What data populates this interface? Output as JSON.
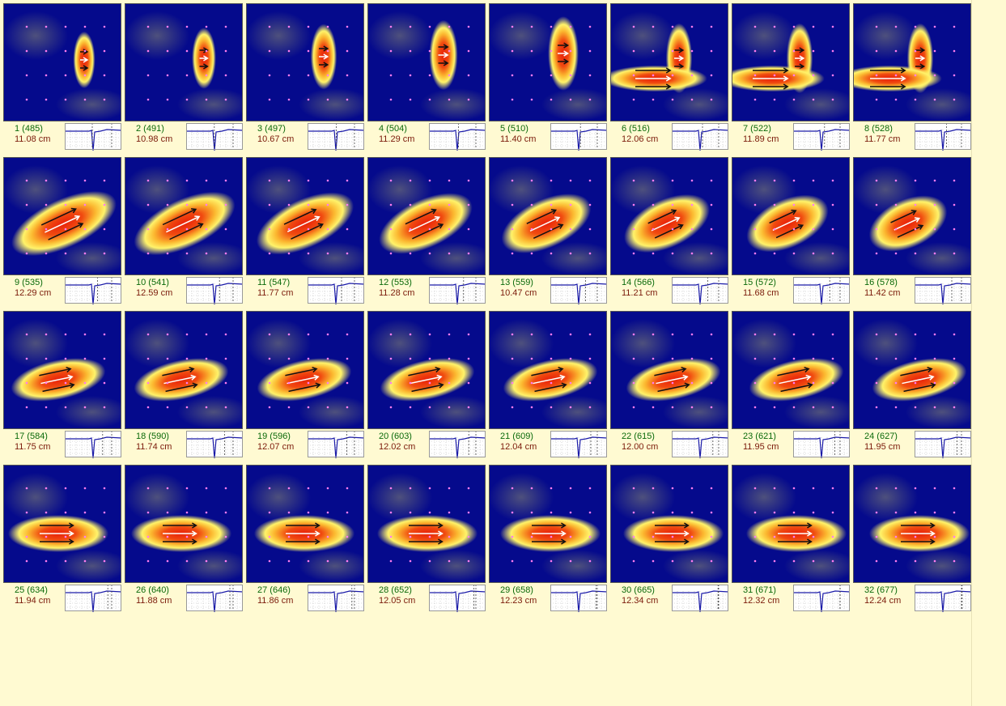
{
  "frames": [
    {
      "label": "1 (485)",
      "distance": "11.08 cm"
    },
    {
      "label": "2 (491)",
      "distance": "10.98 cm"
    },
    {
      "label": "3 (497)",
      "distance": "10.67 cm"
    },
    {
      "label": "4 (504)",
      "distance": "11.29 cm"
    },
    {
      "label": "5 (510)",
      "distance": "11.40 cm"
    },
    {
      "label": "6 (516)",
      "distance": "12.06 cm"
    },
    {
      "label": "7 (522)",
      "distance": "11.89 cm"
    },
    {
      "label": "8 (528)",
      "distance": "11.77 cm"
    },
    {
      "label": "9 (535)",
      "distance": "12.29 cm"
    },
    {
      "label": "10 (541)",
      "distance": "12.59 cm"
    },
    {
      "label": "11 (547)",
      "distance": "11.77 cm"
    },
    {
      "label": "12 (553)",
      "distance": "11.28 cm"
    },
    {
      "label": "13 (559)",
      "distance": "10.47 cm"
    },
    {
      "label": "14 (566)",
      "distance": "11.21 cm"
    },
    {
      "label": "15 (572)",
      "distance": "11.68 cm"
    },
    {
      "label": "16 (578)",
      "distance": "11.42 cm"
    },
    {
      "label": "17 (584)",
      "distance": "11.75 cm"
    },
    {
      "label": "18 (590)",
      "distance": "11.74 cm"
    },
    {
      "label": "19 (596)",
      "distance": "12.07 cm"
    },
    {
      "label": "20 (603)",
      "distance": "12.02 cm"
    },
    {
      "label": "21 (609)",
      "distance": "12.04 cm"
    },
    {
      "label": "22 (615)",
      "distance": "12.00 cm"
    },
    {
      "label": "23 (621)",
      "distance": "11.95 cm"
    },
    {
      "label": "24 (627)",
      "distance": "11.95 cm"
    },
    {
      "label": "25 (634)",
      "distance": "11.94 cm"
    },
    {
      "label": "26 (640)",
      "distance": "11.88 cm"
    },
    {
      "label": "27 (646)",
      "distance": "11.86 cm"
    },
    {
      "label": "28 (652)",
      "distance": "12.05 cm"
    },
    {
      "label": "29 (658)",
      "distance": "12.23 cm"
    },
    {
      "label": "30 (665)",
      "distance": "12.34 cm"
    },
    {
      "label": "31 (671)",
      "distance": "12.32 cm"
    },
    {
      "label": "32 (677)",
      "distance": "12.24 cm"
    }
  ]
}
